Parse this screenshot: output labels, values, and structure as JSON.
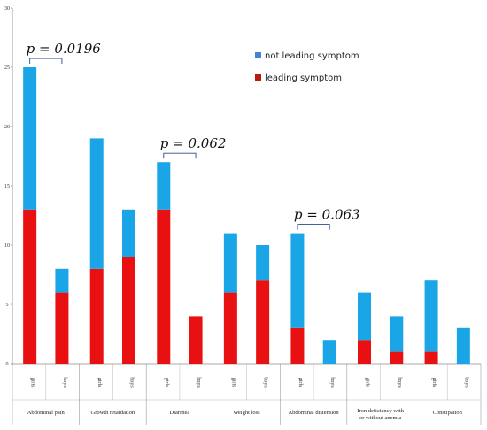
{
  "chart_data": {
    "type": "bar",
    "stacked": true,
    "groups": [
      "Abdominal pain",
      "Growth retardation",
      "Diarrhea",
      "Weight loss",
      "Abdominal distension",
      "Iron deficiency with or without anemia",
      "Constipation"
    ],
    "sub_categories": [
      "girls",
      "boys"
    ],
    "series": [
      {
        "name": "leading symptom",
        "color": "#e81010",
        "values": [
          [
            13,
            6
          ],
          [
            8,
            9
          ],
          [
            13,
            4
          ],
          [
            6,
            7
          ],
          [
            3,
            0
          ],
          [
            2,
            1
          ],
          [
            1,
            0
          ]
        ]
      },
      {
        "name": "not leading symptom",
        "color": "#1aa6e6",
        "values": [
          [
            12,
            2
          ],
          [
            11,
            4
          ],
          [
            4,
            0
          ],
          [
            5,
            3
          ],
          [
            8,
            2
          ],
          [
            4,
            3
          ],
          [
            6,
            3
          ]
        ]
      }
    ],
    "ylim": [
      0,
      30
    ],
    "yticks": [
      0,
      5,
      10,
      15,
      20,
      25,
      30
    ],
    "legend_position": "top-right",
    "annotations": [
      {
        "text": "p = 0.0196",
        "group": 0
      },
      {
        "text": "p = 0.062",
        "group": 2
      },
      {
        "text": "p = 0.063",
        "group": 4
      }
    ]
  }
}
